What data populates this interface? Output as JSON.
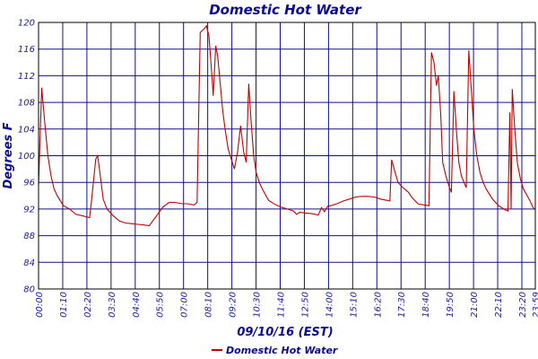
{
  "chart_data": {
    "type": "line",
    "title": "Domestic Hot Water",
    "xlabel": "09/10/16 (EST)",
    "ylabel": "Degrees F",
    "ylim": [
      80,
      120
    ],
    "y_ticks": [
      80,
      84,
      88,
      92,
      96,
      100,
      104,
      108,
      112,
      116,
      120
    ],
    "x_tick_labels": [
      "00:00",
      "01:10",
      "02:20",
      "03:30",
      "04:40",
      "05:50",
      "07:00",
      "08:10",
      "09:20",
      "10:30",
      "11:40",
      "12:50",
      "14:00",
      "15:10",
      "16:20",
      "17:30",
      "18:40",
      "19:50",
      "21:00",
      "22:10",
      "23:20",
      "23:59"
    ],
    "grid": true,
    "legend_position": "bottom",
    "series": [
      {
        "name": "Domestic Hot Water",
        "color": "#c00000",
        "points": [
          [
            0,
            95.5
          ],
          [
            5,
            110.2
          ],
          [
            10,
            105
          ],
          [
            15,
            100
          ],
          [
            20,
            97
          ],
          [
            25,
            95
          ],
          [
            30,
            94
          ],
          [
            40,
            92.5
          ],
          [
            50,
            92
          ],
          [
            60,
            91.2
          ],
          [
            70,
            91
          ],
          [
            82,
            90.7
          ],
          [
            85,
            93
          ],
          [
            92,
            99.5
          ],
          [
            95,
            100
          ],
          [
            98,
            98
          ],
          [
            104,
            93.5
          ],
          [
            110,
            92
          ],
          [
            120,
            91
          ],
          [
            130,
            90.2
          ],
          [
            140,
            89.9
          ],
          [
            150,
            89.8
          ],
          [
            160,
            89.7
          ],
          [
            170,
            89.6
          ],
          [
            178,
            89.5
          ],
          [
            182,
            90
          ],
          [
            190,
            91
          ],
          [
            200,
            92.3
          ],
          [
            210,
            93
          ],
          [
            220,
            93
          ],
          [
            230,
            92.8
          ],
          [
            240,
            92.8
          ],
          [
            250,
            92.6
          ],
          [
            255,
            93
          ],
          [
            260,
            118.5
          ],
          [
            266,
            119
          ],
          [
            270,
            119.5
          ],
          [
            274,
            118
          ],
          [
            278,
            113
          ],
          [
            281,
            109
          ],
          [
            285,
            116.5
          ],
          [
            288,
            115
          ],
          [
            292,
            111
          ],
          [
            296,
            107
          ],
          [
            300,
            104
          ],
          [
            305,
            101
          ],
          [
            310,
            99.5
          ],
          [
            315,
            98
          ],
          [
            320,
            100.5
          ],
          [
            325,
            104.5
          ],
          [
            330,
            100.5
          ],
          [
            334,
            99
          ],
          [
            338,
            110.8
          ],
          [
            342,
            105
          ],
          [
            346,
            100
          ],
          [
            350,
            97.5
          ],
          [
            355,
            96
          ],
          [
            360,
            95
          ],
          [
            370,
            93.3
          ],
          [
            380,
            92.7
          ],
          [
            390,
            92.3
          ],
          [
            400,
            92
          ],
          [
            410,
            91.7
          ],
          [
            415,
            91.2
          ],
          [
            420,
            91.5
          ],
          [
            430,
            91.4
          ],
          [
            440,
            91.3
          ],
          [
            450,
            91.1
          ],
          [
            455,
            92.2
          ],
          [
            460,
            91.6
          ],
          [
            465,
            92.4
          ],
          [
            470,
            92.5
          ],
          [
            480,
            92.8
          ],
          [
            490,
            93.2
          ],
          [
            500,
            93.5
          ],
          [
            510,
            93.8
          ],
          [
            520,
            93.9
          ],
          [
            530,
            93.9
          ],
          [
            540,
            93.8
          ],
          [
            550,
            93.5
          ],
          [
            560,
            93.3
          ],
          [
            565,
            93.2
          ],
          [
            568,
            99.4
          ],
          [
            572,
            98
          ],
          [
            578,
            96
          ],
          [
            585,
            95.3
          ],
          [
            595,
            94.5
          ],
          [
            600,
            93.8
          ],
          [
            610,
            92.8
          ],
          [
            620,
            92.6
          ],
          [
            628,
            92.5
          ],
          [
            632,
            115.5
          ],
          [
            636,
            114
          ],
          [
            640,
            110.5
          ],
          [
            643,
            112
          ],
          [
            647,
            106
          ],
          [
            650,
            99
          ],
          [
            655,
            97
          ],
          [
            660,
            95.5
          ],
          [
            664,
            94.5
          ],
          [
            668,
            109.7
          ],
          [
            672,
            104
          ],
          [
            676,
            99
          ],
          [
            680,
            97
          ],
          [
            685,
            95.8
          ],
          [
            688,
            95.2
          ],
          [
            692,
            115.8
          ],
          [
            696,
            110
          ],
          [
            700,
            104
          ],
          [
            705,
            100
          ],
          [
            710,
            97.5
          ],
          [
            715,
            96
          ],
          [
            720,
            95
          ],
          [
            730,
            93.5
          ],
          [
            740,
            92.5
          ],
          [
            750,
            91.9
          ],
          [
            755,
            91.7
          ],
          [
            758,
            106.5
          ],
          [
            760,
            92
          ],
          [
            762,
            110
          ],
          [
            766,
            104
          ],
          [
            770,
            99
          ],
          [
            775,
            96.5
          ],
          [
            780,
            95
          ],
          [
            790,
            93.3
          ],
          [
            795,
            92.3
          ],
          [
            799,
            91.9
          ]
        ]
      }
    ]
  }
}
